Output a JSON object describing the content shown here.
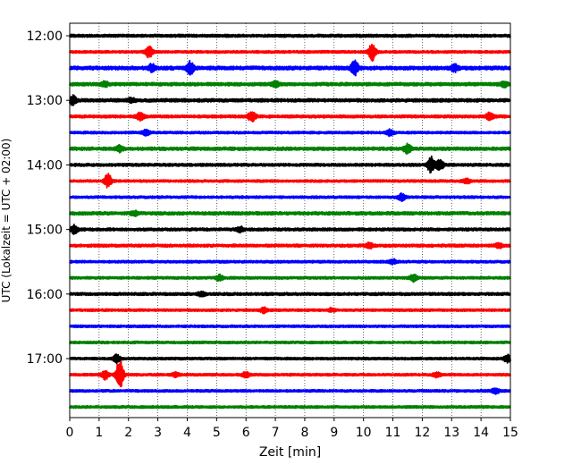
{
  "chart_data": {
    "type": "line",
    "title": "",
    "xlabel": "Zeit  [min]",
    "ylabel": "UTC (Lokalzeit = UTC + 02:00)",
    "xlim": [
      0,
      15
    ],
    "x_ticks": [
      "0",
      "1",
      "2",
      "3",
      "4",
      "5",
      "6",
      "7",
      "8",
      "9",
      "10",
      "11",
      "12",
      "13",
      "14",
      "15"
    ],
    "y_tick_labels": [
      {
        "row": 0,
        "label": "12:00"
      },
      {
        "row": 4,
        "label": "13:00"
      },
      {
        "row": 8,
        "label": "14:00"
      },
      {
        "row": 12,
        "label": "15:00"
      },
      {
        "row": 16,
        "label": "16:00"
      },
      {
        "row": 20,
        "label": "17:00"
      }
    ],
    "grid": "vertical dotted",
    "colors": [
      "#000000",
      "#ff0000",
      "#0000ff",
      "#008000"
    ],
    "row_interval_minutes": 15,
    "rows": [
      {
        "start": "12:00",
        "color": "#000000",
        "noise": 0.35,
        "events": []
      },
      {
        "start": "12:15",
        "color": "#ff0000",
        "noise": 0.3,
        "events": [
          {
            "t": 2.7,
            "amp": 2.0
          },
          {
            "t": 10.3,
            "amp": 2.8
          }
        ]
      },
      {
        "start": "12:30",
        "color": "#0000ff",
        "noise": 0.45,
        "events": [
          {
            "t": 2.8,
            "amp": 1.2
          },
          {
            "t": 4.1,
            "amp": 2.2
          },
          {
            "t": 9.7,
            "amp": 2.8
          },
          {
            "t": 13.1,
            "amp": 1.2
          }
        ]
      },
      {
        "start": "12:45",
        "color": "#008000",
        "noise": 0.4,
        "events": [
          {
            "t": 1.2,
            "amp": 0.8
          },
          {
            "t": 7.0,
            "amp": 1.0
          },
          {
            "t": 14.8,
            "amp": 1.0
          }
        ]
      },
      {
        "start": "13:00",
        "color": "#000000",
        "noise": 0.4,
        "events": [
          {
            "t": 0.1,
            "amp": 1.6
          },
          {
            "t": 2.1,
            "amp": 0.8
          }
        ]
      },
      {
        "start": "13:15",
        "color": "#ff0000",
        "noise": 0.35,
        "events": [
          {
            "t": 2.4,
            "amp": 1.6
          },
          {
            "t": 6.2,
            "amp": 2.0
          },
          {
            "t": 14.3,
            "amp": 1.4
          }
        ]
      },
      {
        "start": "13:30",
        "color": "#0000ff",
        "noise": 0.3,
        "events": [
          {
            "t": 2.6,
            "amp": 1.0
          },
          {
            "t": 10.9,
            "amp": 1.0
          }
        ]
      },
      {
        "start": "13:45",
        "color": "#008000",
        "noise": 0.4,
        "events": [
          {
            "t": 1.7,
            "amp": 1.0
          },
          {
            "t": 11.5,
            "amp": 1.6
          }
        ]
      },
      {
        "start": "14:00",
        "color": "#000000",
        "noise": 0.35,
        "events": [
          {
            "t": 12.3,
            "amp": 2.6
          },
          {
            "t": 12.6,
            "amp": 1.8
          }
        ]
      },
      {
        "start": "14:15",
        "color": "#ff0000",
        "noise": 0.3,
        "events": [
          {
            "t": 1.3,
            "amp": 2.4
          },
          {
            "t": 13.5,
            "amp": 0.8
          }
        ]
      },
      {
        "start": "14:30",
        "color": "#0000ff",
        "noise": 0.3,
        "events": [
          {
            "t": 11.3,
            "amp": 1.2
          }
        ]
      },
      {
        "start": "14:45",
        "color": "#008000",
        "noise": 0.4,
        "events": [
          {
            "t": 2.2,
            "amp": 0.8
          }
        ]
      },
      {
        "start": "15:00",
        "color": "#000000",
        "noise": 0.35,
        "events": [
          {
            "t": 0.15,
            "amp": 1.5
          },
          {
            "t": 5.8,
            "amp": 0.8
          }
        ]
      },
      {
        "start": "15:15",
        "color": "#ff0000",
        "noise": 0.35,
        "events": [
          {
            "t": 10.2,
            "amp": 1.0
          },
          {
            "t": 14.6,
            "amp": 0.8
          }
        ]
      },
      {
        "start": "15:30",
        "color": "#0000ff",
        "noise": 0.3,
        "events": [
          {
            "t": 11.0,
            "amp": 0.8
          }
        ]
      },
      {
        "start": "15:45",
        "color": "#008000",
        "noise": 0.3,
        "events": [
          {
            "t": 5.1,
            "amp": 1.0
          },
          {
            "t": 11.7,
            "amp": 1.2
          }
        ]
      },
      {
        "start": "16:00",
        "color": "#000000",
        "noise": 0.35,
        "events": [
          {
            "t": 4.5,
            "amp": 0.8
          }
        ]
      },
      {
        "start": "16:15",
        "color": "#ff0000",
        "noise": 0.3,
        "events": [
          {
            "t": 6.6,
            "amp": 0.8
          },
          {
            "t": 8.9,
            "amp": 0.6
          }
        ]
      },
      {
        "start": "16:30",
        "color": "#0000ff",
        "noise": 0.3,
        "events": []
      },
      {
        "start": "16:45",
        "color": "#008000",
        "noise": 0.3,
        "events": []
      },
      {
        "start": "17:00",
        "color": "#000000",
        "noise": 0.3,
        "events": [
          {
            "t": 1.6,
            "amp": 1.4
          },
          {
            "t": 14.9,
            "amp": 1.4
          }
        ]
      },
      {
        "start": "17:15",
        "color": "#ff0000",
        "noise": 0.3,
        "events": [
          {
            "t": 1.2,
            "amp": 1.6
          },
          {
            "t": 1.7,
            "amp": 6.0
          },
          {
            "t": 3.6,
            "amp": 0.8
          },
          {
            "t": 6.0,
            "amp": 1.0
          },
          {
            "t": 12.5,
            "amp": 0.8
          }
        ]
      },
      {
        "start": "17:30",
        "color": "#0000ff",
        "noise": 0.3,
        "events": [
          {
            "t": 14.5,
            "amp": 0.9
          }
        ]
      },
      {
        "start": "17:45",
        "color": "#008000",
        "noise": 0.3,
        "events": []
      }
    ]
  }
}
